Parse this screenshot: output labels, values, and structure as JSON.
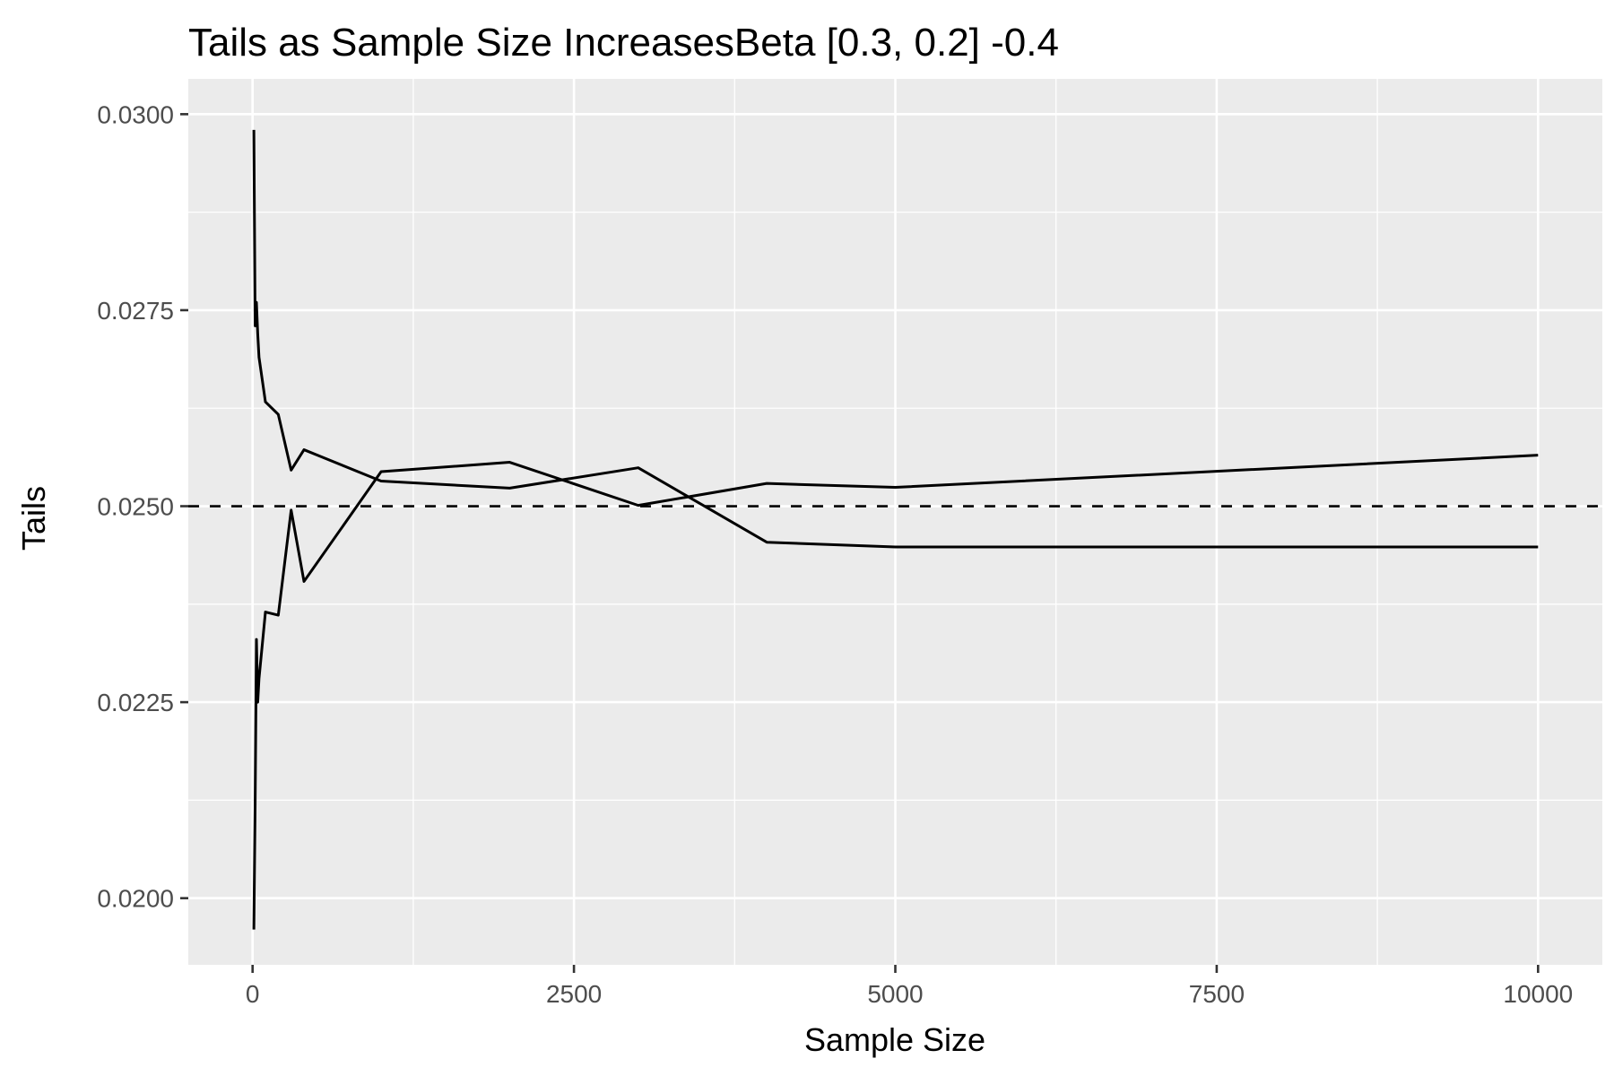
{
  "chart_data": {
    "type": "line",
    "title": "Tails as Sample Size IncreasesBeta [0.3, 0.2] -0.4",
    "xlabel": "Sample Size",
    "ylabel": "Tails",
    "xlim": [
      -500,
      10500
    ],
    "ylim": [
      0.01915,
      0.03045
    ],
    "x_ticks": [
      0,
      2500,
      5000,
      7500,
      10000
    ],
    "x_tick_labels": [
      "0",
      "2500",
      "5000",
      "7500",
      "10000"
    ],
    "y_ticks": [
      0.02,
      0.0225,
      0.025,
      0.0275,
      0.03
    ],
    "y_tick_labels": [
      "0.0200",
      "0.0225",
      "0.0250",
      "0.0275",
      "0.0300"
    ],
    "grid": true,
    "background": "#ebebeb",
    "grid_color": "#ffffff",
    "line_color": "#000000",
    "reference_line": {
      "y": 0.025,
      "style": "dashed"
    },
    "series": [
      {
        "x": [
          10,
          20,
          30,
          40,
          50,
          100,
          200,
          300,
          400,
          1000,
          2000,
          3000,
          4000,
          5000,
          10000
        ],
        "values": [
          0.0298,
          0.0273,
          0.0276,
          0.0272,
          0.0269,
          0.02633,
          0.02617,
          0.02546,
          0.02572,
          0.02532,
          0.02523,
          0.02549,
          0.02454,
          0.02448,
          0.02448
        ]
      },
      {
        "x": [
          10,
          20,
          30,
          40,
          50,
          100,
          200,
          300,
          400,
          1000,
          2000,
          3000,
          4000,
          5000,
          10000
        ],
        "values": [
          0.0196,
          0.0212,
          0.0233,
          0.0225,
          0.0228,
          0.02365,
          0.02361,
          0.02495,
          0.02404,
          0.02544,
          0.02556,
          0.02501,
          0.02529,
          0.02524,
          0.02565
        ]
      }
    ]
  }
}
